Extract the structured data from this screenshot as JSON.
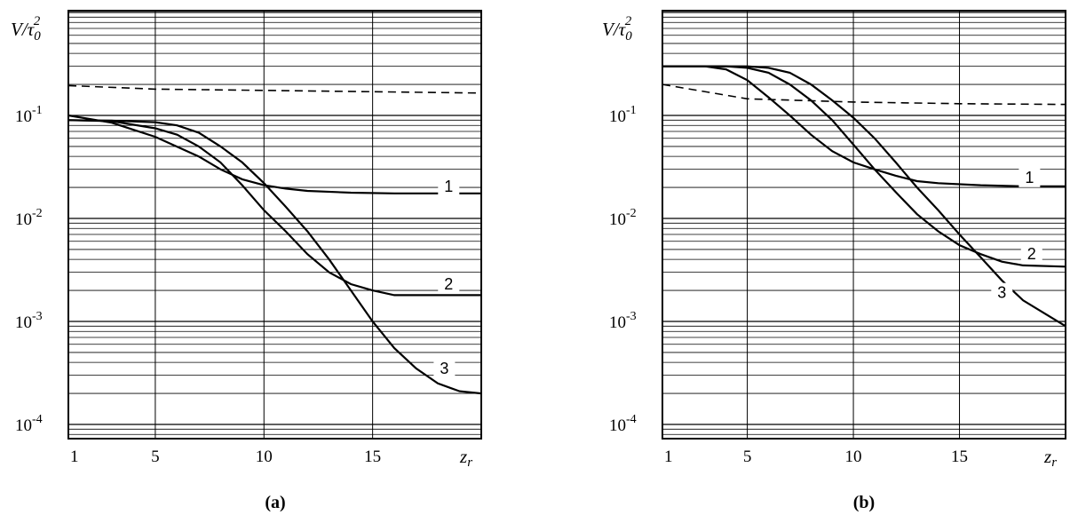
{
  "chart_data": [
    {
      "type": "line",
      "panel_label": "(a)",
      "ylabel": "V/τ₀²",
      "xlabel": "z_r",
      "xlabel_main": "z",
      "xlabel_sub": "r",
      "ylabel_main": "V/τ",
      "ylabel_sub": "0",
      "ylabel_sup": "2",
      "x_ticks": [
        "1",
        "5",
        "10",
        "15"
      ],
      "y_ticks": [
        {
          "base": "10",
          "exp": "-1"
        },
        {
          "base": "10",
          "exp": "-2"
        },
        {
          "base": "10",
          "exp": "-3"
        },
        {
          "base": "10",
          "exp": "-4"
        }
      ],
      "y_scale": "log",
      "xlim": [
        1,
        20
      ],
      "ylim": [
        7e-05,
        0.7
      ],
      "grid": true,
      "series": [
        {
          "name": "1",
          "style": "solid",
          "label_x": 18.5,
          "label_y": 0.0205,
          "x": [
            1,
            3,
            5,
            7,
            8,
            9,
            10,
            11,
            12,
            14,
            16,
            18,
            20
          ],
          "y": [
            0.1,
            0.085,
            0.062,
            0.04,
            0.03,
            0.024,
            0.021,
            0.0195,
            0.0185,
            0.0178,
            0.0175,
            0.0175,
            0.0175
          ]
        },
        {
          "name": "2",
          "style": "solid",
          "label_x": 18.5,
          "label_y": 0.0023,
          "x": [
            1,
            3,
            5,
            6,
            7,
            8,
            9,
            10,
            11,
            12,
            13,
            14,
            15,
            16,
            18,
            20
          ],
          "y": [
            0.09,
            0.088,
            0.075,
            0.065,
            0.05,
            0.035,
            0.021,
            0.012,
            0.0075,
            0.0045,
            0.003,
            0.0023,
            0.002,
            0.0018,
            0.0018,
            0.0018
          ]
        },
        {
          "name": "3",
          "style": "solid",
          "label_x": 18.3,
          "label_y": 0.00035,
          "x": [
            1,
            3,
            5,
            6,
            7,
            8,
            9,
            10,
            11,
            12,
            13,
            14,
            15,
            16,
            17,
            18,
            19,
            20
          ],
          "y": [
            0.09,
            0.089,
            0.086,
            0.08,
            0.068,
            0.05,
            0.035,
            0.022,
            0.013,
            0.0075,
            0.004,
            0.002,
            0.001,
            0.00055,
            0.00035,
            0.00025,
            0.00021,
            0.0002
          ]
        },
        {
          "name": "",
          "style": "dashed",
          "x": [
            1,
            5,
            10,
            15,
            20
          ],
          "y": [
            0.195,
            0.18,
            0.175,
            0.17,
            0.165
          ]
        }
      ]
    },
    {
      "type": "line",
      "panel_label": "(b)",
      "ylabel": "V/τ₀²",
      "xlabel": "z_r",
      "xlabel_main": "z",
      "xlabel_sub": "r",
      "ylabel_main": "V/τ",
      "ylabel_sub": "0",
      "ylabel_sup": "2",
      "x_ticks": [
        "1",
        "5",
        "10",
        "15"
      ],
      "y_ticks": [
        {
          "base": "10",
          "exp": "-1"
        },
        {
          "base": "10",
          "exp": "-2"
        },
        {
          "base": "10",
          "exp": "-3"
        },
        {
          "base": "10",
          "exp": "-4"
        }
      ],
      "y_scale": "log",
      "xlim": [
        1,
        20
      ],
      "ylim": [
        7e-05,
        0.7
      ],
      "grid": true,
      "series": [
        {
          "name": "1",
          "style": "solid",
          "label_x": 18.3,
          "label_y": 0.025,
          "x": [
            1,
            3,
            4,
            5,
            6,
            7,
            8,
            9,
            10,
            11,
            12,
            13,
            14,
            16,
            18,
            20
          ],
          "y": [
            0.3,
            0.3,
            0.28,
            0.22,
            0.15,
            0.1,
            0.065,
            0.045,
            0.035,
            0.03,
            0.026,
            0.023,
            0.022,
            0.021,
            0.0205,
            0.0205
          ]
        },
        {
          "name": "2",
          "style": "solid",
          "label_x": 18.4,
          "label_y": 0.0045,
          "x": [
            1,
            4,
            5,
            6,
            7,
            8,
            9,
            10,
            11,
            12,
            13,
            14,
            15,
            16,
            17,
            18,
            20
          ],
          "y": [
            0.3,
            0.3,
            0.29,
            0.26,
            0.2,
            0.14,
            0.09,
            0.052,
            0.03,
            0.018,
            0.011,
            0.0075,
            0.0055,
            0.0045,
            0.0038,
            0.0035,
            0.0034
          ]
        },
        {
          "name": "3",
          "style": "solid",
          "label_x": 17.0,
          "label_y": 0.0019,
          "x": [
            1,
            5,
            6,
            7,
            8,
            9,
            10,
            11,
            12,
            13,
            14,
            15,
            16,
            17,
            18,
            19,
            20
          ],
          "y": [
            0.3,
            0.3,
            0.29,
            0.26,
            0.2,
            0.14,
            0.095,
            0.06,
            0.035,
            0.02,
            0.012,
            0.007,
            0.0042,
            0.0025,
            0.0016,
            0.0012,
            0.0009
          ]
        },
        {
          "name": "",
          "style": "dashed",
          "x": [
            1,
            5,
            10,
            15,
            20
          ],
          "y": [
            0.2,
            0.145,
            0.135,
            0.13,
            0.128
          ]
        }
      ]
    }
  ]
}
